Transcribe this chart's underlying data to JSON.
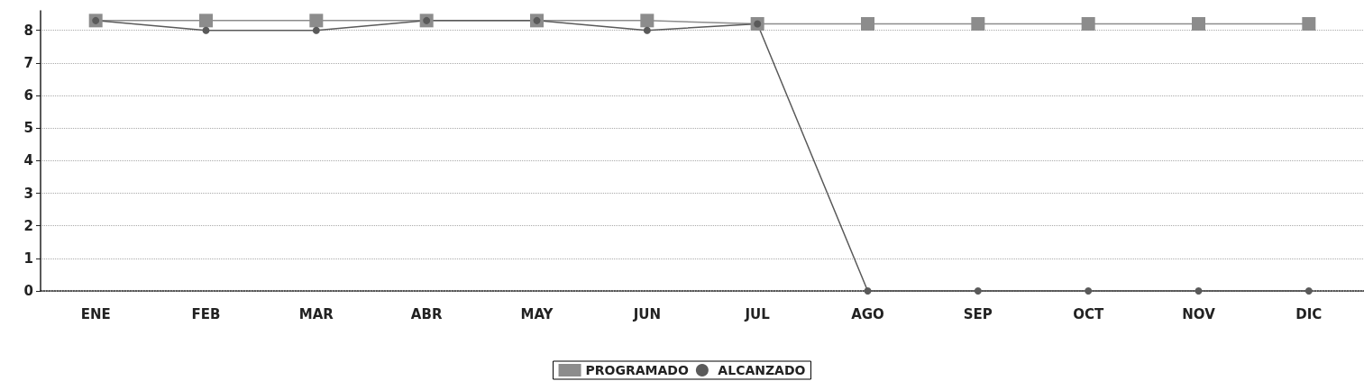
{
  "chart_data": {
    "type": "line",
    "categories": [
      "ENE",
      "FEB",
      "MAR",
      "ABR",
      "MAY",
      "JUN",
      "JUL",
      "AGO",
      "SEP",
      "OCT",
      "NOV",
      "DIC"
    ],
    "series": [
      {
        "name": "PROGRAMADO",
        "color": "#8c8c8c",
        "marker": "square",
        "values": [
          8.3,
          8.3,
          8.3,
          8.3,
          8.3,
          8.3,
          8.2,
          8.2,
          8.2,
          8.2,
          8.2,
          8.2
        ]
      },
      {
        "name": "ALCANZADO",
        "color": "#5a5a5a",
        "marker": "circle",
        "values": [
          8.3,
          8.0,
          8.0,
          8.3,
          8.3,
          8.0,
          8.2,
          0,
          0,
          0,
          0,
          0
        ]
      }
    ],
    "ylim": [
      0,
      8.6
    ],
    "yticks": [
      0,
      1,
      2,
      3,
      4,
      5,
      6,
      7,
      8
    ],
    "grid": "y",
    "legend": "bottom"
  }
}
